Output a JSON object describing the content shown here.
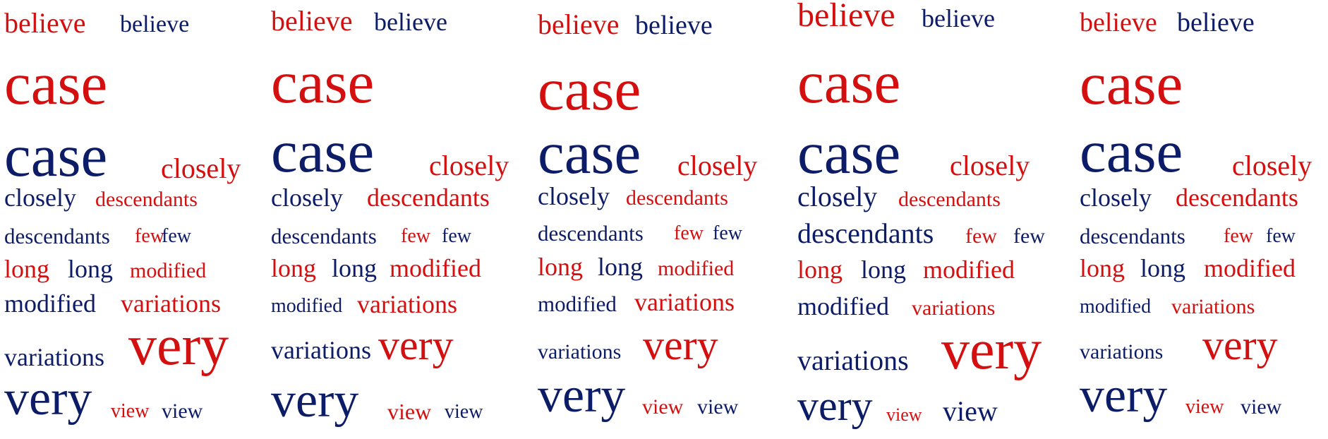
{
  "colors": {
    "red": "#d40f0f",
    "blue": "#0c1c66"
  },
  "clouds": [
    {
      "words": [
        {
          "t": "believe",
          "c": "red"
        },
        {
          "t": "believe",
          "c": "blue"
        },
        {
          "t": "case",
          "c": "red"
        },
        {
          "t": "case",
          "c": "blue"
        },
        {
          "t": "closely",
          "c": "red"
        },
        {
          "t": "closely",
          "c": "blue"
        },
        {
          "t": "descendants",
          "c": "red"
        },
        {
          "t": "descendants",
          "c": "blue"
        },
        {
          "t": "few",
          "c": "red"
        },
        {
          "t": "few",
          "c": "blue"
        },
        {
          "t": "long",
          "c": "red"
        },
        {
          "t": "long",
          "c": "blue"
        },
        {
          "t": "modified",
          "c": "red"
        },
        {
          "t": "modified",
          "c": "blue"
        },
        {
          "t": "variations",
          "c": "red"
        },
        {
          "t": "variations",
          "c": "blue"
        },
        {
          "t": "very",
          "c": "red"
        },
        {
          "t": "very",
          "c": "blue"
        },
        {
          "t": "view",
          "c": "red"
        },
        {
          "t": "view",
          "c": "blue"
        }
      ]
    },
    {
      "words": [
        {
          "t": "believe",
          "c": "red"
        },
        {
          "t": "believe",
          "c": "blue"
        },
        {
          "t": "case",
          "c": "red"
        },
        {
          "t": "case",
          "c": "blue"
        },
        {
          "t": "closely",
          "c": "red"
        },
        {
          "t": "closely",
          "c": "blue"
        },
        {
          "t": "descendants",
          "c": "red"
        },
        {
          "t": "descendants",
          "c": "blue"
        },
        {
          "t": "few",
          "c": "red"
        },
        {
          "t": "few",
          "c": "blue"
        },
        {
          "t": "long",
          "c": "red"
        },
        {
          "t": "long",
          "c": "blue"
        },
        {
          "t": "modified",
          "c": "red"
        },
        {
          "t": "modified",
          "c": "blue"
        },
        {
          "t": "variations",
          "c": "red"
        },
        {
          "t": "variations",
          "c": "blue"
        },
        {
          "t": "very",
          "c": "red"
        },
        {
          "t": "very",
          "c": "blue"
        },
        {
          "t": "view",
          "c": "red"
        },
        {
          "t": "view",
          "c": "blue"
        }
      ]
    },
    {
      "words": [
        {
          "t": "believe",
          "c": "red"
        },
        {
          "t": "believe",
          "c": "blue"
        },
        {
          "t": "case",
          "c": "red"
        },
        {
          "t": "case",
          "c": "blue"
        },
        {
          "t": "closely",
          "c": "red"
        },
        {
          "t": "closely",
          "c": "blue"
        },
        {
          "t": "descendants",
          "c": "red"
        },
        {
          "t": "descendants",
          "c": "blue"
        },
        {
          "t": "few",
          "c": "red"
        },
        {
          "t": "few",
          "c": "blue"
        },
        {
          "t": "long",
          "c": "red"
        },
        {
          "t": "long",
          "c": "blue"
        },
        {
          "t": "modified",
          "c": "red"
        },
        {
          "t": "modified",
          "c": "blue"
        },
        {
          "t": "variations",
          "c": "red"
        },
        {
          "t": "variations",
          "c": "blue"
        },
        {
          "t": "very",
          "c": "red"
        },
        {
          "t": "very",
          "c": "blue"
        },
        {
          "t": "view",
          "c": "red"
        },
        {
          "t": "view",
          "c": "blue"
        }
      ]
    },
    {
      "words": [
        {
          "t": "believe",
          "c": "red"
        },
        {
          "t": "believe",
          "c": "blue"
        },
        {
          "t": "case",
          "c": "red"
        },
        {
          "t": "case",
          "c": "blue"
        },
        {
          "t": "closely",
          "c": "red"
        },
        {
          "t": "closely",
          "c": "blue"
        },
        {
          "t": "descendants",
          "c": "red"
        },
        {
          "t": "descendants",
          "c": "blue"
        },
        {
          "t": "few",
          "c": "red"
        },
        {
          "t": "few",
          "c": "blue"
        },
        {
          "t": "long",
          "c": "red"
        },
        {
          "t": "long",
          "c": "blue"
        },
        {
          "t": "modified",
          "c": "red"
        },
        {
          "t": "modified",
          "c": "blue"
        },
        {
          "t": "variations",
          "c": "red"
        },
        {
          "t": "variations",
          "c": "blue"
        },
        {
          "t": "very",
          "c": "red"
        },
        {
          "t": "very",
          "c": "blue"
        },
        {
          "t": "view",
          "c": "red"
        },
        {
          "t": "view",
          "c": "blue"
        }
      ]
    },
    {
      "words": [
        {
          "t": "believe",
          "c": "red"
        },
        {
          "t": "believe",
          "c": "blue"
        },
        {
          "t": "case",
          "c": "red"
        },
        {
          "t": "case",
          "c": "blue"
        },
        {
          "t": "closely",
          "c": "red"
        },
        {
          "t": "closely",
          "c": "blue"
        },
        {
          "t": "descendants",
          "c": "red"
        },
        {
          "t": "descendants",
          "c": "blue"
        },
        {
          "t": "few",
          "c": "red"
        },
        {
          "t": "few",
          "c": "blue"
        },
        {
          "t": "long",
          "c": "red"
        },
        {
          "t": "long",
          "c": "blue"
        },
        {
          "t": "modified",
          "c": "red"
        },
        {
          "t": "modified",
          "c": "blue"
        },
        {
          "t": "variations",
          "c": "red"
        },
        {
          "t": "variations",
          "c": "blue"
        },
        {
          "t": "very",
          "c": "red"
        },
        {
          "t": "very",
          "c": "blue"
        },
        {
          "t": "view",
          "c": "red"
        },
        {
          "t": "view",
          "c": "blue"
        }
      ]
    }
  ]
}
